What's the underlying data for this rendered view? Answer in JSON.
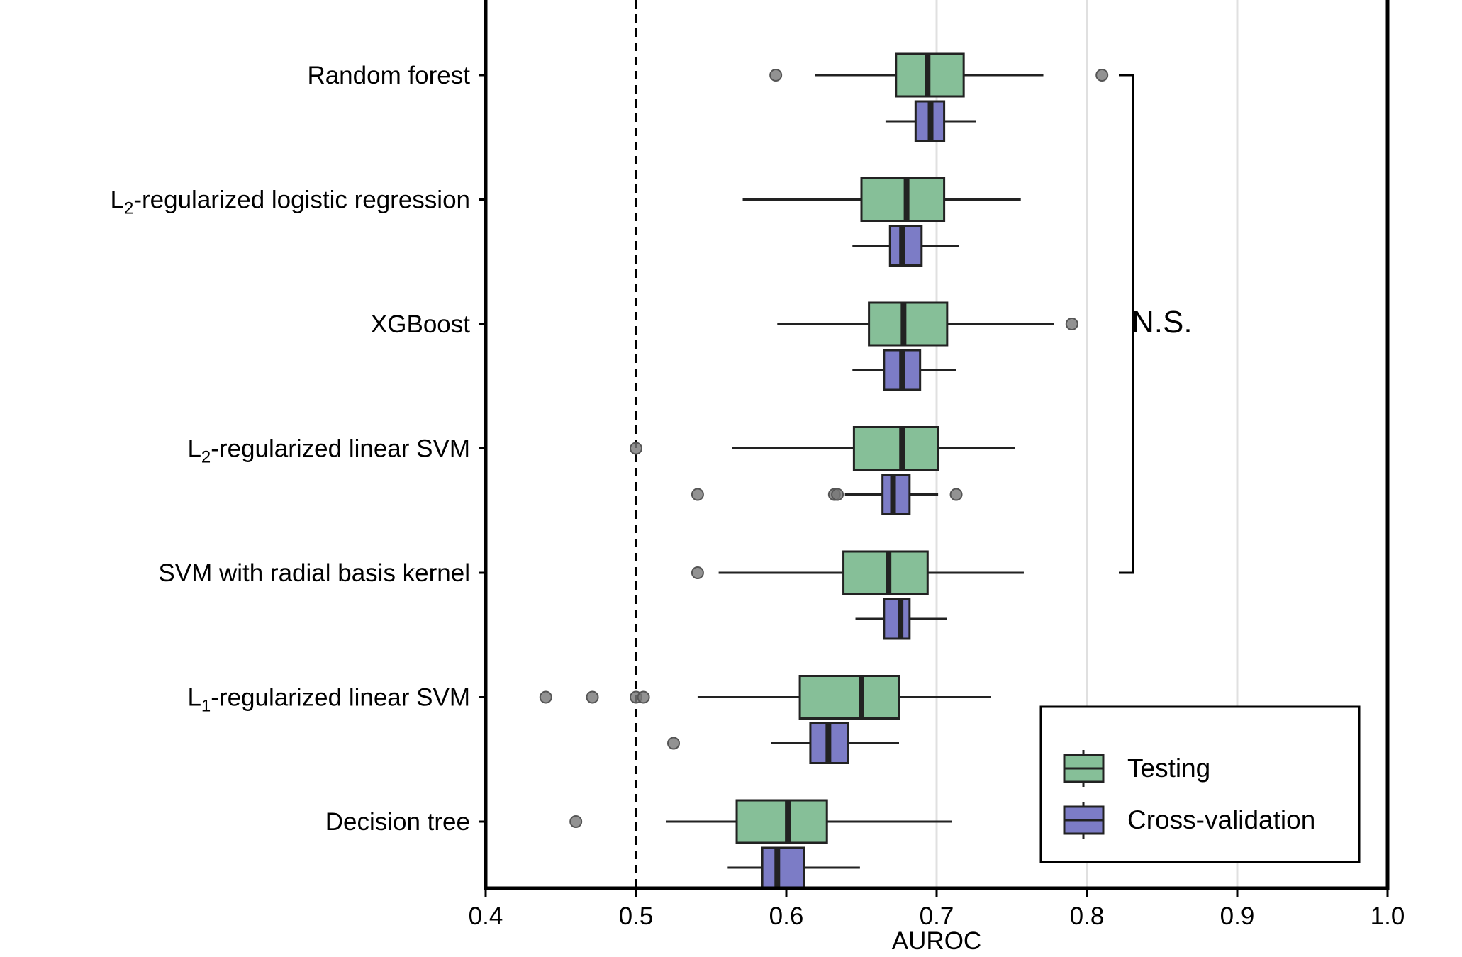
{
  "chart_data": {
    "type": "boxplot",
    "xlabel": "AUROC",
    "xlim": [
      0.4,
      1.0
    ],
    "xticks": [
      "0.4",
      "0.5",
      "0.6",
      "0.7",
      "0.8",
      "0.9",
      "1.0"
    ],
    "vertical_gridlines_at": [
      0.7,
      0.8,
      0.9
    ],
    "reference_line": {
      "x": 0.5,
      "style": "dashed"
    },
    "colors": {
      "Testing": "#86bf98",
      "Cross-validation": "#7c7cc6"
    },
    "legend": {
      "placement": "bottom-right",
      "entries": [
        "Testing",
        "Cross-validation"
      ]
    },
    "annotation": {
      "text": "N.S.",
      "bracket_from": "Random forest",
      "bracket_to": "SVM with radial basis kernel"
    },
    "categories": [
      {
        "label": "Random forest",
        "sub": ""
      },
      {
        "label": "L",
        "sub": "2",
        "suffix": "-regularized logistic regression"
      },
      {
        "label": "XGBoost",
        "sub": ""
      },
      {
        "label": "L",
        "sub": "2",
        "suffix": "-regularized linear SVM"
      },
      {
        "label": "SVM with radial basis kernel",
        "sub": ""
      },
      {
        "label": "L",
        "sub": "1",
        "suffix": "-regularized linear SVM"
      },
      {
        "label": "Decision tree",
        "sub": ""
      }
    ],
    "series": [
      {
        "name": "Testing",
        "boxes": [
          {
            "whislo": 0.619,
            "q1": 0.673,
            "med": 0.694,
            "q3": 0.718,
            "whishi": 0.771,
            "fliers": [
              0.593,
              0.81
            ]
          },
          {
            "whislo": 0.571,
            "q1": 0.65,
            "med": 0.68,
            "q3": 0.705,
            "whishi": 0.756,
            "fliers": []
          },
          {
            "whislo": 0.594,
            "q1": 0.655,
            "med": 0.678,
            "q3": 0.707,
            "whishi": 0.778,
            "fliers": [
              0.79
            ]
          },
          {
            "whislo": 0.564,
            "q1": 0.645,
            "med": 0.677,
            "q3": 0.701,
            "whishi": 0.752,
            "fliers": [
              0.5
            ]
          },
          {
            "whislo": 0.555,
            "q1": 0.638,
            "med": 0.668,
            "q3": 0.694,
            "whishi": 0.758,
            "fliers": [
              0.541
            ]
          },
          {
            "whislo": 0.541,
            "q1": 0.609,
            "med": 0.65,
            "q3": 0.675,
            "whishi": 0.736,
            "fliers": [
              0.44,
              0.471,
              0.5,
              0.505
            ]
          },
          {
            "whislo": 0.52,
            "q1": 0.567,
            "med": 0.601,
            "q3": 0.627,
            "whishi": 0.71,
            "fliers": [
              0.46
            ]
          }
        ]
      },
      {
        "name": "Cross-validation",
        "boxes": [
          {
            "whislo": 0.666,
            "q1": 0.686,
            "med": 0.696,
            "q3": 0.705,
            "whishi": 0.726,
            "fliers": []
          },
          {
            "whislo": 0.644,
            "q1": 0.669,
            "med": 0.677,
            "q3": 0.69,
            "whishi": 0.715,
            "fliers": []
          },
          {
            "whislo": 0.644,
            "q1": 0.665,
            "med": 0.677,
            "q3": 0.689,
            "whishi": 0.713,
            "fliers": []
          },
          {
            "whislo": 0.639,
            "q1": 0.664,
            "med": 0.671,
            "q3": 0.682,
            "whishi": 0.701,
            "fliers": [
              0.541,
              0.632,
              0.634,
              0.713
            ]
          },
          {
            "whislo": 0.646,
            "q1": 0.665,
            "med": 0.676,
            "q3": 0.682,
            "whishi": 0.707,
            "fliers": []
          },
          {
            "whislo": 0.59,
            "q1": 0.616,
            "med": 0.628,
            "q3": 0.641,
            "whishi": 0.675,
            "fliers": [
              0.525
            ]
          },
          {
            "whislo": 0.561,
            "q1": 0.584,
            "med": 0.594,
            "q3": 0.612,
            "whishi": 0.649,
            "fliers": []
          }
        ]
      }
    ]
  }
}
